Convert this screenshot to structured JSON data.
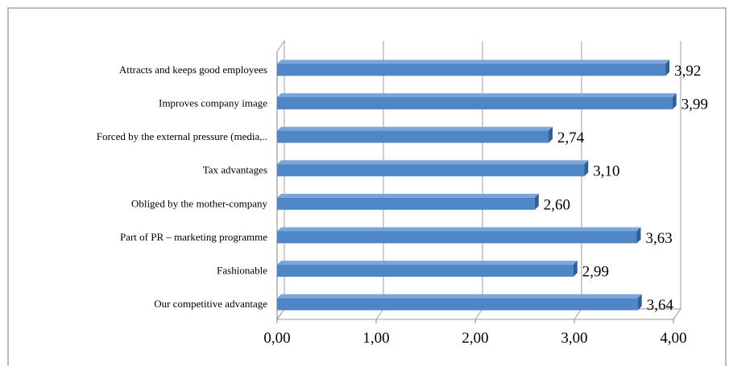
{
  "chart_data": {
    "type": "bar",
    "orientation": "horizontal",
    "title": "",
    "xlabel": "",
    "ylabel": "",
    "categories": [
      "Attracts and keeps good employees",
      "Improves company image",
      "Forced by the external pressure (media,..",
      "Tax advantages",
      "Obliged by the mother-company",
      "Part of PR – marketing programme",
      "Fashionable",
      "Our competitive advantage"
    ],
    "values": [
      3.92,
      3.99,
      2.74,
      3.1,
      2.6,
      3.63,
      2.99,
      3.64
    ],
    "value_labels": [
      "3,92",
      "3,99",
      "2,74",
      "3,10",
      "2,60",
      "3,63",
      "2,99",
      "3,64"
    ],
    "xlim": [
      0,
      4
    ],
    "xticks": [
      0,
      1,
      2,
      3,
      4
    ],
    "xtick_labels": [
      "0,00",
      "1,00",
      "2,00",
      "3,00",
      "4,00"
    ],
    "grid": true,
    "legend": "none",
    "bar_color": "#4f86c6",
    "bar_color_dark": "#2f5f99"
  }
}
